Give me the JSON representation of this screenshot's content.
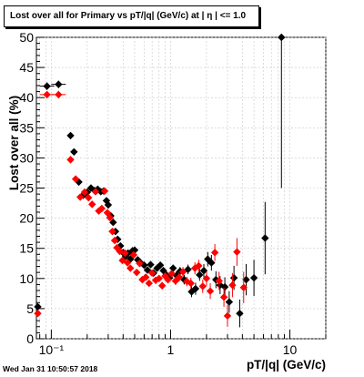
{
  "chart_data": {
    "type": "scatter",
    "title": "Lost over all for Primary vs pT/|q| (GeV/c) at |  η | <= 1.0",
    "xlabel": "pT/|q| (GeV/c)",
    "ylabel": "Lost over all (%)",
    "xscale": "log",
    "xlim": [
      0.075,
      20
    ],
    "ylim": [
      0,
      50
    ],
    "y_ticks": [
      0,
      5,
      10,
      15,
      20,
      25,
      30,
      35,
      40,
      45,
      50
    ],
    "x_tick_labels": [
      "10⁻¹",
      "1",
      "10"
    ],
    "x_tick_values": [
      0.1,
      1,
      10
    ],
    "grid": true,
    "colors": {
      "black_series": "#000000",
      "red_series": "#ff0000",
      "grid": "#c8c8c8"
    },
    "series": [
      {
        "color": "#000000",
        "points": [
          [
            0.077,
            5.3,
            0
          ],
          [
            0.092,
            41.9,
            0.6
          ],
          [
            0.115,
            42.2,
            0.6
          ],
          [
            0.145,
            33.7,
            0.5
          ],
          [
            0.155,
            31,
            0.5
          ],
          [
            0.17,
            26,
            0.4
          ],
          [
            0.185,
            23.8,
            0.4
          ],
          [
            0.2,
            24.3,
            0.4
          ],
          [
            0.215,
            25,
            0.4
          ],
          [
            0.23,
            24.6,
            0.4
          ],
          [
            0.245,
            24.8,
            0.4
          ],
          [
            0.26,
            24.4,
            0.4
          ],
          [
            0.275,
            24.5,
            0.4
          ],
          [
            0.29,
            22.9,
            0.4
          ],
          [
            0.3,
            22.2,
            0.4
          ],
          [
            0.315,
            20.4,
            0.4
          ],
          [
            0.33,
            19.3,
            0.4
          ],
          [
            0.345,
            17.8,
            0.4
          ],
          [
            0.36,
            16.5,
            0.4
          ],
          [
            0.38,
            15.4,
            0.4
          ],
          [
            0.4,
            14.3,
            0.4
          ],
          [
            0.42,
            13.7,
            0.4
          ],
          [
            0.44,
            14.2,
            0.4
          ],
          [
            0.46,
            13.2,
            0.4
          ],
          [
            0.48,
            14.6,
            0.4
          ],
          [
            0.5,
            14.7,
            0.4
          ],
          [
            0.53,
            13.1,
            0.4
          ],
          [
            0.56,
            12.6,
            0.4
          ],
          [
            0.6,
            12.2,
            0.4
          ],
          [
            0.64,
            11.4,
            0.5
          ],
          [
            0.68,
            12.3,
            0.5
          ],
          [
            0.72,
            10.9,
            0.5
          ],
          [
            0.77,
            11.7,
            0.5
          ],
          [
            0.82,
            12.2,
            0.5
          ],
          [
            0.87,
            11.3,
            0.5
          ],
          [
            0.92,
            10.6,
            0.6
          ],
          [
            0.98,
            10.1,
            0.6
          ],
          [
            1.05,
            11.7,
            0.6
          ],
          [
            1.12,
            10.5,
            0.7
          ],
          [
            1.2,
            11.2,
            0.7
          ],
          [
            1.3,
            9.8,
            0.8
          ],
          [
            1.4,
            11.5,
            0.8
          ],
          [
            1.5,
            7.8,
            0.9
          ],
          [
            1.62,
            8.3,
            1.0
          ],
          [
            1.75,
            10.6,
            1.0
          ],
          [
            1.9,
            11.3,
            1.1
          ],
          [
            2.05,
            13.2,
            1.2
          ],
          [
            2.2,
            12.6,
            1.3
          ],
          [
            2.4,
            9.8,
            1.4
          ],
          [
            2.6,
            8.9,
            1.5
          ],
          [
            2.85,
            8.6,
            1.6
          ],
          [
            3.1,
            6.1,
            1.8
          ],
          [
            3.4,
            10.1,
            2.0
          ],
          [
            3.8,
            4.2,
            2.3
          ],
          [
            4.3,
            9.8,
            2.6
          ],
          [
            5.0,
            10.1,
            3.0
          ],
          [
            6.2,
            16.7,
            6
          ],
          [
            8.5,
            50.0,
            25
          ]
        ]
      },
      {
        "color": "#ff0000",
        "points": [
          [
            0.077,
            4.2,
            0
          ],
          [
            0.092,
            40.5,
            0.6
          ],
          [
            0.115,
            40.5,
            0.6
          ],
          [
            0.145,
            29.7,
            0.5
          ],
          [
            0.16,
            26.5,
            0.5
          ],
          [
            0.175,
            23.5,
            0.4
          ],
          [
            0.19,
            24.3,
            0.4
          ],
          [
            0.205,
            23.4,
            0.4
          ],
          [
            0.22,
            22.3,
            0.4
          ],
          [
            0.235,
            24.4,
            0.4
          ],
          [
            0.25,
            21.2,
            0.4
          ],
          [
            0.265,
            21.6,
            0.4
          ],
          [
            0.28,
            24.5,
            0.4
          ],
          [
            0.295,
            20.9,
            0.4
          ],
          [
            0.31,
            20.1,
            0.4
          ],
          [
            0.325,
            17.8,
            0.4
          ],
          [
            0.34,
            16.3,
            0.4
          ],
          [
            0.355,
            15.1,
            0.4
          ],
          [
            0.375,
            14.5,
            0.4
          ],
          [
            0.395,
            13.0,
            0.4
          ],
          [
            0.415,
            14.2,
            0.4
          ],
          [
            0.435,
            12.6,
            0.4
          ],
          [
            0.46,
            11.7,
            0.4
          ],
          [
            0.49,
            13.9,
            0.4
          ],
          [
            0.52,
            11.0,
            0.4
          ],
          [
            0.55,
            12.5,
            0.4
          ],
          [
            0.58,
            9.8,
            0.5
          ],
          [
            0.62,
            10.2,
            0.5
          ],
          [
            0.66,
            9.2,
            0.5
          ],
          [
            0.7,
            10.9,
            0.5
          ],
          [
            0.75,
            9.7,
            0.5
          ],
          [
            0.8,
            10.0,
            0.5
          ],
          [
            0.85,
            8.8,
            0.6
          ],
          [
            0.9,
            10.4,
            0.6
          ],
          [
            0.95,
            9.8,
            0.6
          ],
          [
            1.02,
            10.8,
            0.6
          ],
          [
            1.1,
            9.6,
            0.7
          ],
          [
            1.18,
            10.2,
            0.7
          ],
          [
            1.27,
            11.1,
            0.8
          ],
          [
            1.37,
            9.5,
            0.8
          ],
          [
            1.48,
            9.2,
            0.9
          ],
          [
            1.6,
            11.7,
            1.0
          ],
          [
            1.72,
            12.1,
            1.0
          ],
          [
            1.86,
            8.7,
            1.1
          ],
          [
            2.0,
            10.0,
            1.2
          ],
          [
            2.15,
            7.9,
            1.3
          ],
          [
            2.35,
            14.3,
            1.4
          ],
          [
            2.55,
            9.6,
            1.5
          ],
          [
            2.8,
            6.9,
            1.6
          ],
          [
            3.0,
            3.8,
            1.8
          ],
          [
            3.3,
            8.9,
            2.0
          ],
          [
            3.6,
            14.4,
            2.3
          ],
          [
            4.1,
            8.5,
            2.6
          ]
        ]
      }
    ],
    "footer": "Wed Jan 31 10:50:57 2018"
  }
}
